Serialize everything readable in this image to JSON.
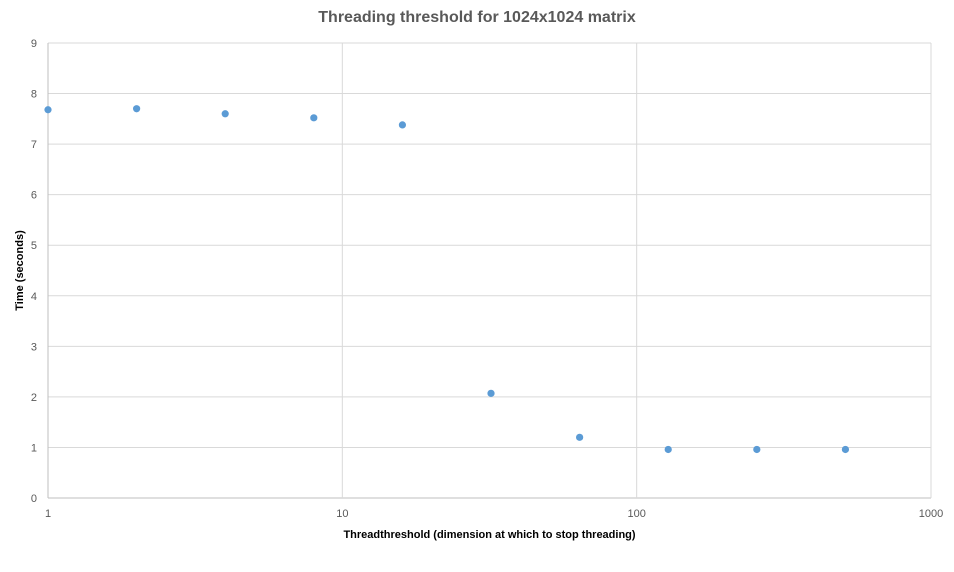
{
  "chart_data": {
    "type": "scatter",
    "title": "Threading threshold for 1024x1024 matrix",
    "xlabel": "Threadthreshold (dimension at which to stop threading)",
    "ylabel": "Time (seconds)",
    "x_scale": "log",
    "xlim": [
      1,
      1000
    ],
    "ylim": [
      0,
      9
    ],
    "x_ticks": [
      "1",
      "10",
      "100",
      "1000"
    ],
    "y_ticks": [
      "0",
      "1",
      "2",
      "3",
      "4",
      "5",
      "6",
      "7",
      "8",
      "9"
    ],
    "grid": true,
    "legend": "none",
    "series": [
      {
        "color": "#5b9bd5",
        "points": [
          {
            "x": 1,
            "y": 7.68
          },
          {
            "x": 2,
            "y": 7.7
          },
          {
            "x": 4,
            "y": 7.6
          },
          {
            "x": 8,
            "y": 7.52
          },
          {
            "x": 16,
            "y": 7.38
          },
          {
            "x": 32,
            "y": 2.07
          },
          {
            "x": 64,
            "y": 1.2
          },
          {
            "x": 128,
            "y": 0.96
          },
          {
            "x": 256,
            "y": 0.96
          },
          {
            "x": 512,
            "y": 0.96
          }
        ]
      }
    ]
  }
}
